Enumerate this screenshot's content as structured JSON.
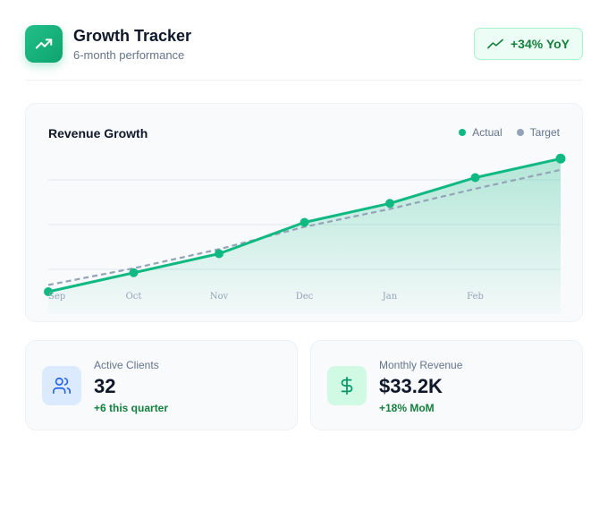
{
  "header": {
    "title": "Growth Tracker",
    "subtitle": "6-month performance",
    "badge": "+34% YoY"
  },
  "chart": {
    "title": "Revenue Growth",
    "legend": {
      "actual": "Actual",
      "target": "Target"
    }
  },
  "colors": {
    "actual": "#10b981",
    "target": "#94a3b8",
    "accent": "#15803d"
  },
  "chart_data": {
    "type": "line",
    "title": "Revenue Growth",
    "categories": [
      "Sep",
      "Oct",
      "Nov",
      "Dec",
      "Jan",
      "Feb",
      ""
    ],
    "x_ticks": [
      "Sep",
      "Oct",
      "Nov",
      "Dec",
      "Jan",
      "Feb"
    ],
    "series": [
      {
        "name": "Actual",
        "style": "solid-area",
        "values": [
          0,
          1.7,
          3.4,
          6.2,
          7.9,
          10.2,
          11.9
        ]
      },
      {
        "name": "Target",
        "style": "dashed",
        "values": [
          0.6,
          2.1,
          3.8,
          5.8,
          7.4,
          9.2,
          10.9
        ]
      }
    ],
    "ylim": [
      -2,
      14
    ],
    "gridlines": [
      2,
      6,
      10
    ],
    "grid": true,
    "legend_position": "top-right"
  },
  "stats": [
    {
      "label": "Active Clients",
      "value": "32",
      "delta": "+6 this quarter",
      "icon": "users-icon"
    },
    {
      "label": "Monthly Revenue",
      "value": "$33.2K",
      "delta": "+18% MoM",
      "icon": "dollar-icon"
    }
  ]
}
